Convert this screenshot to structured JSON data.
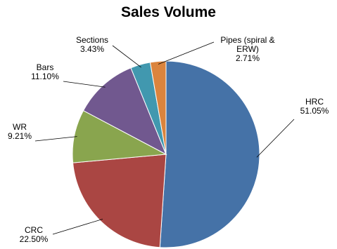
{
  "chart_data": {
    "type": "pie",
    "title": "Sales Volume",
    "categories": [
      "HRC",
      "CRC",
      "WR",
      "Bars",
      "Sections",
      "Pipes (spiral & ERW)"
    ],
    "values": [
      51.05,
      22.5,
      9.21,
      11.1,
      3.43,
      2.71
    ],
    "value_labels": [
      "51.05%",
      "22.50%",
      "9.21%",
      "11.10%",
      "3.43%",
      "2.71%"
    ],
    "colors": [
      "#4572a7",
      "#aa4643",
      "#89a54e",
      "#71588f",
      "#4198af",
      "#db843d"
    ]
  }
}
